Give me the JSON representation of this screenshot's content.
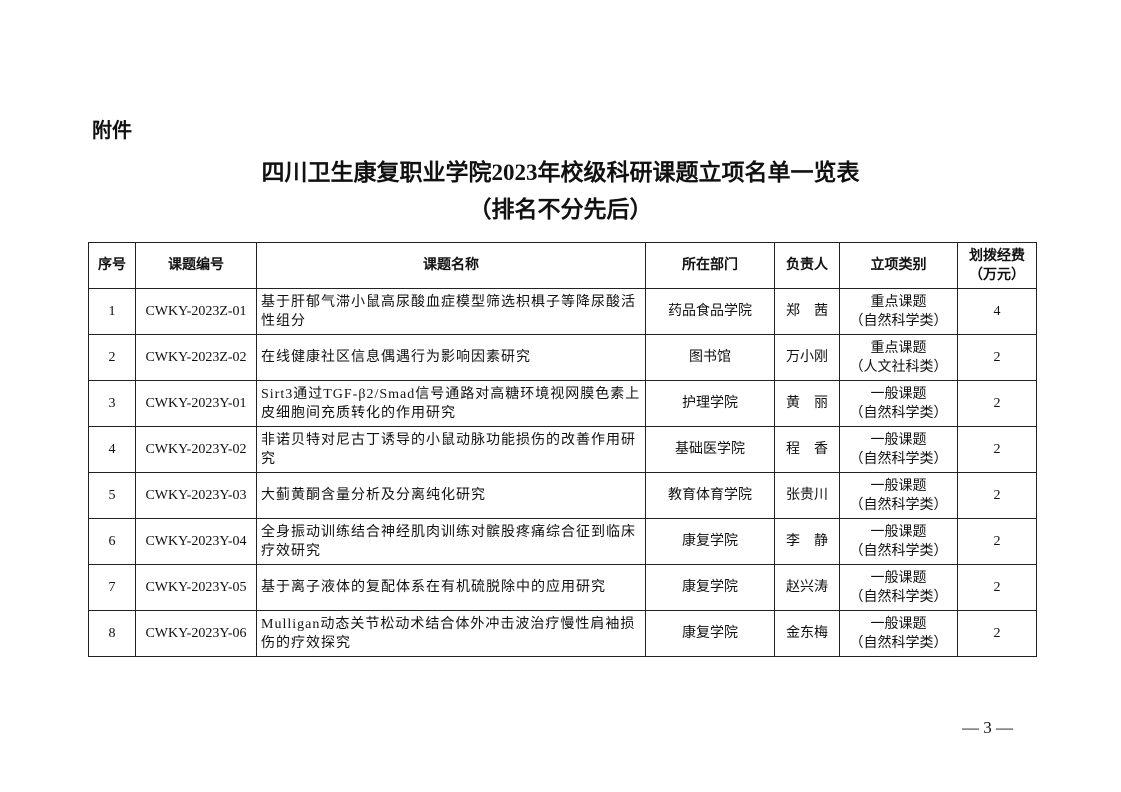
{
  "attachment_label": "附件",
  "title": "四川卫生康复职业学院2023年校级科研课题立项名单一览表",
  "subtitle": "（排名不分先后）",
  "table": {
    "headers": [
      "序号",
      "课题编号",
      "课题名称",
      "所在部门",
      "负责人",
      "立项类别",
      "划拨经费（万元）"
    ],
    "rows": [
      {
        "no": "1",
        "code": "CWKY-2023Z-01",
        "name": "基于肝郁气滞小鼠高尿酸血症模型筛选枳椇子等降尿酸活性组分",
        "dept": "药品食品学院",
        "leader": "郑　茜",
        "type": "重点课题",
        "subtype": "（自然科学类）",
        "funds": "4"
      },
      {
        "no": "2",
        "code": "CWKY-2023Z-02",
        "name": "在线健康社区信息偶遇行为影响因素研究",
        "dept": "图书馆",
        "leader": "万小刚",
        "type": "重点课题",
        "subtype": "（人文社科类）",
        "funds": "2"
      },
      {
        "no": "3",
        "code": "CWKY-2023Y-01",
        "name": "Sirt3通过TGF-β2/Smad信号通路对高糖环境视网膜色素上皮细胞间充质转化的作用研究",
        "dept": "护理学院",
        "leader": "黄　丽",
        "type": "一般课题",
        "subtype": "（自然科学类）",
        "funds": "2"
      },
      {
        "no": "4",
        "code": "CWKY-2023Y-02",
        "name": "非诺贝特对尼古丁诱导的小鼠动脉功能损伤的改善作用研究",
        "dept": "基础医学院",
        "leader": "程　香",
        "type": "一般课题",
        "subtype": "（自然科学类）",
        "funds": "2"
      },
      {
        "no": "5",
        "code": "CWKY-2023Y-03",
        "name": "大蓟黄酮含量分析及分离纯化研究",
        "dept": "教育体育学院",
        "leader": "张贵川",
        "type": "一般课题",
        "subtype": "（自然科学类）",
        "funds": "2"
      },
      {
        "no": "6",
        "code": "CWKY-2023Y-04",
        "name": "全身振动训练结合神经肌肉训练对髌股疼痛综合征到临床疗效研究",
        "dept": "康复学院",
        "leader": "李　静",
        "type": "一般课题",
        "subtype": "（自然科学类）",
        "funds": "2"
      },
      {
        "no": "7",
        "code": "CWKY-2023Y-05",
        "name": "基于离子液体的复配体系在有机硫脱除中的应用研究",
        "dept": "康复学院",
        "leader": "赵兴涛",
        "type": "一般课题",
        "subtype": "（自然科学类）",
        "funds": "2"
      },
      {
        "no": "8",
        "code": "CWKY-2023Y-06",
        "name": "Mulligan动态关节松动术结合体外冲击波治疗慢性肩袖损伤的疗效探究",
        "dept": "康复学院",
        "leader": "金东梅",
        "type": "一般课题",
        "subtype": "（自然科学类）",
        "funds": "2"
      }
    ]
  },
  "page_number": "— 3 —"
}
